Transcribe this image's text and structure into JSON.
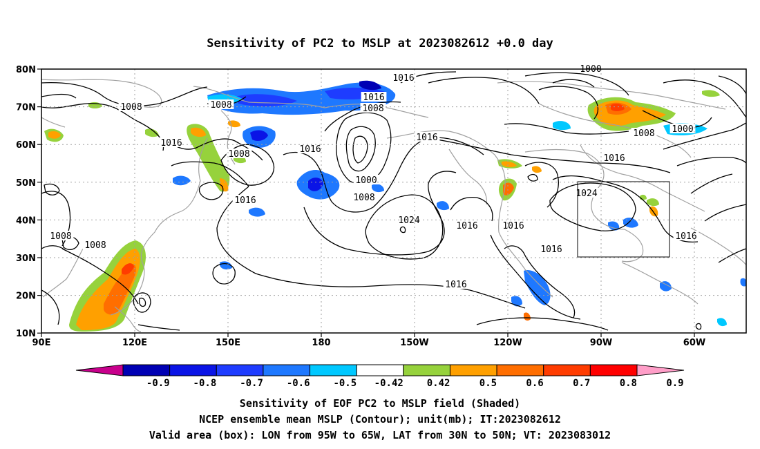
{
  "title": "Sensitivity of PC2 to MSLP at 2023082612 +0.0 day",
  "lat_labels": [
    "80N",
    "70N",
    "60N",
    "50N",
    "40N",
    "30N",
    "20N",
    "10N"
  ],
  "lon_labels": [
    "90E",
    "120E",
    "150E",
    "180",
    "150W",
    "120W",
    "90W",
    "60W"
  ],
  "contour_labels": [
    {
      "id": "c1",
      "text": "1016"
    },
    {
      "id": "c2",
      "text": "1016"
    },
    {
      "id": "c3",
      "text": "1008"
    },
    {
      "id": "c4",
      "text": "1000"
    },
    {
      "id": "c5",
      "text": "1008"
    },
    {
      "id": "c6",
      "text": "1016"
    },
    {
      "id": "c7",
      "text": "1008"
    },
    {
      "id": "c8",
      "text": "1016"
    },
    {
      "id": "c9",
      "text": "1016"
    },
    {
      "id": "c10",
      "text": "1008"
    },
    {
      "id": "c11",
      "text": "1000"
    },
    {
      "id": "c12",
      "text": "1008"
    },
    {
      "id": "c13",
      "text": "1016"
    },
    {
      "id": "c14",
      "text": "1024"
    },
    {
      "id": "c15",
      "text": "1016"
    },
    {
      "id": "c16",
      "text": "1016"
    },
    {
      "id": "c17",
      "text": "1024"
    },
    {
      "id": "c18",
      "text": "1016"
    },
    {
      "id": "c19",
      "text": "1016"
    },
    {
      "id": "c20",
      "text": "1016"
    },
    {
      "id": "c21",
      "text": "1000"
    },
    {
      "id": "c22",
      "text": "1008"
    },
    {
      "id": "c23",
      "text": "1008"
    },
    {
      "id": "c24",
      "text": "1008"
    },
    {
      "id": "c25",
      "text": "1000"
    },
    {
      "id": "c26",
      "text": "1008"
    },
    {
      "id": "c27",
      "text": "1016"
    }
  ],
  "colorbar": {
    "labels": [
      "-0.9",
      "-0.8",
      "-0.7",
      "-0.6",
      "-0.5",
      "-0.42",
      "0.42",
      "0.5",
      "0.6",
      "0.7",
      "0.8",
      "0.9"
    ],
    "colors": [
      "#c8008c",
      "#0000b4",
      "#0a14e6",
      "#1e3cff",
      "#1e78ff",
      "#00c8ff",
      "#ffffff",
      "#96d23c",
      "#ffa000",
      "#ff6e00",
      "#ff3c00",
      "#ff0000",
      "#ff9ec8"
    ]
  },
  "valid_box": {
    "lon_from": "95W",
    "lon_to": "65W",
    "lat_from": "30N",
    "lat_to": "50N"
  },
  "footer": {
    "line1": "Sensitivity of EOF PC2 to MSLP field (Shaded)",
    "line2": "NCEP ensemble mean MSLP (Contour); unit(mb); IT:2023082612",
    "line3": "Valid area (box): LON from 95W to 65W, LAT from 30N to 50N; VT: 2023083012"
  }
}
